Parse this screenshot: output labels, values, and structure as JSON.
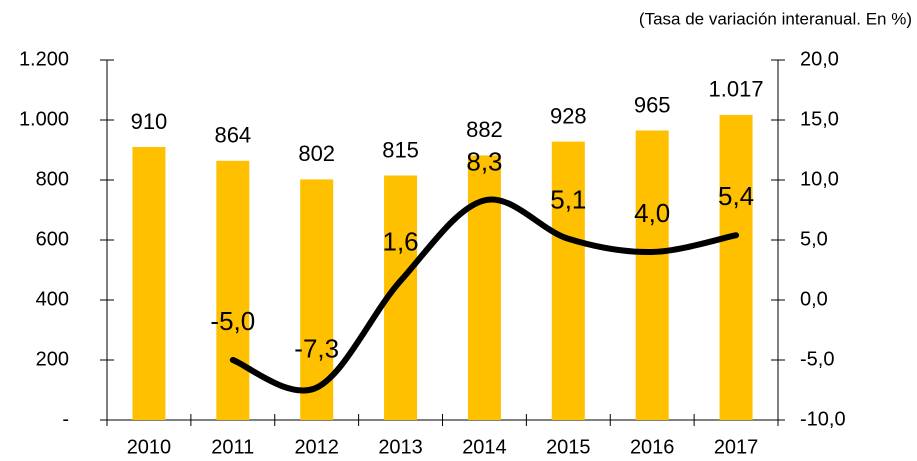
{
  "chart_data": {
    "type": "bar_line",
    "subtitle": "(Tasa de variación interanual. En %)",
    "categories": [
      "2010",
      "2011",
      "2012",
      "2013",
      "2014",
      "2015",
      "2016",
      "2017"
    ],
    "series": [
      {
        "type": "bar",
        "color": "#FFC000",
        "values": [
          910,
          864,
          802,
          815,
          882,
          928,
          965,
          1017
        ],
        "value_labels": [
          "910",
          "864",
          "802",
          "815",
          "882",
          "928",
          "965",
          "1.017"
        ]
      },
      {
        "type": "line",
        "axis": "y2",
        "color": "#000000",
        "values": [
          null,
          -5.0,
          -7.3,
          1.6,
          8.3,
          5.1,
          4.0,
          5.4
        ],
        "value_labels": [
          null,
          "-5,0",
          "-7,3",
          "1,6",
          "8,3",
          "5,1",
          "4,0",
          "5,4"
        ]
      }
    ],
    "ylim": [
      0,
      1200
    ],
    "yticks": [
      {
        "value": 0,
        "label": "-"
      },
      200,
      400,
      600,
      800,
      {
        "value": 1000,
        "label": "1.000"
      },
      {
        "value": 1200,
        "label": "1.200"
      }
    ],
    "y2lim": [
      -10,
      20
    ],
    "y2ticks": [
      {
        "value": -10,
        "label": "-10,0"
      },
      {
        "value": -5,
        "label": "-5,0"
      },
      {
        "value": 0,
        "label": "0,0"
      },
      {
        "value": 5,
        "label": "5,0"
      },
      {
        "value": 10,
        "label": "10,0"
      },
      {
        "value": 15,
        "label": "15,0"
      },
      {
        "value": 20,
        "label": "20,0"
      }
    ]
  }
}
